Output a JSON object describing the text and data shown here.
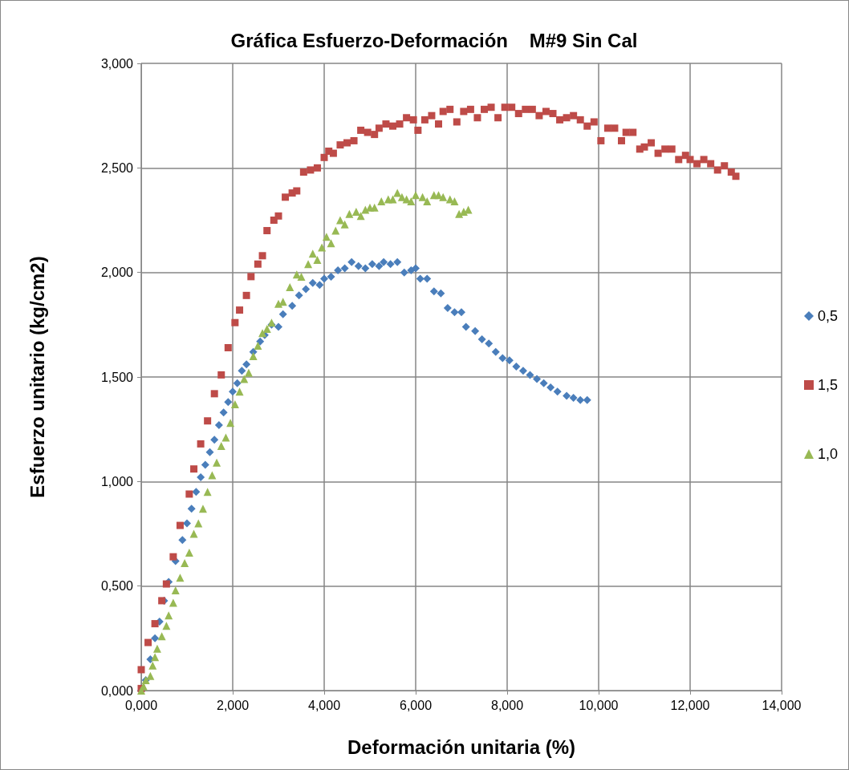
{
  "chart_data": {
    "type": "scatter",
    "title": "Gráfica Esfuerzo-Deformación    M#9 Sin Cal",
    "xlabel": "Deformación unitaria (%)",
    "ylabel": "Esfuerzo unitario (kg/cm2)",
    "xlim": [
      0,
      14
    ],
    "ylim": [
      0,
      3
    ],
    "xticks": [
      {
        "value": 0,
        "label": "0,000"
      },
      {
        "value": 2,
        "label": "2,000"
      },
      {
        "value": 4,
        "label": "4,000"
      },
      {
        "value": 6,
        "label": "6,000"
      },
      {
        "value": 8,
        "label": "8,000"
      },
      {
        "value": 10,
        "label": "10,000"
      },
      {
        "value": 12,
        "label": "12,000"
      },
      {
        "value": 14,
        "label": "14,000"
      }
    ],
    "yticks": [
      {
        "value": 0,
        "label": "0,000"
      },
      {
        "value": 0.5,
        "label": "0,500"
      },
      {
        "value": 1,
        "label": "1,000"
      },
      {
        "value": 1.5,
        "label": "1,500"
      },
      {
        "value": 2,
        "label": "2,000"
      },
      {
        "value": 2.5,
        "label": "2,500"
      },
      {
        "value": 3,
        "label": "3,000"
      }
    ],
    "grid": true,
    "legend": "right",
    "series": [
      {
        "name": "0,5",
        "color": "#4a7ebb",
        "marker": "diamond",
        "x": [
          0,
          0.1,
          0.2,
          0.3,
          0.4,
          0.5,
          0.6,
          0.75,
          0.9,
          1.0,
          1.1,
          1.2,
          1.3,
          1.4,
          1.5,
          1.6,
          1.7,
          1.8,
          1.9,
          2.0,
          2.1,
          2.2,
          2.3,
          2.45,
          2.6,
          2.7,
          2.85,
          3.0,
          3.1,
          3.3,
          3.45,
          3.6,
          3.75,
          3.9,
          4.0,
          4.15,
          4.3,
          4.45,
          4.6,
          4.75,
          4.9,
          5.05,
          5.2,
          5.3,
          5.45,
          5.6,
          5.75,
          5.9,
          6.0,
          6.1,
          6.25,
          6.4,
          6.55,
          6.7,
          6.85,
          7.0,
          7.1,
          7.3,
          7.45,
          7.6,
          7.75,
          7.9,
          8.05,
          8.2,
          8.35,
          8.5,
          8.65,
          8.8,
          8.95,
          9.1,
          9.3,
          9.45,
          9.6,
          9.75
        ],
        "values": [
          0,
          0.05,
          0.15,
          0.25,
          0.33,
          0.43,
          0.52,
          0.62,
          0.72,
          0.8,
          0.87,
          0.95,
          1.02,
          1.08,
          1.14,
          1.2,
          1.27,
          1.33,
          1.38,
          1.43,
          1.47,
          1.53,
          1.56,
          1.62,
          1.67,
          1.7,
          1.75,
          1.74,
          1.8,
          1.84,
          1.89,
          1.92,
          1.95,
          1.94,
          1.97,
          1.98,
          2.01,
          2.02,
          2.05,
          2.03,
          2.02,
          2.04,
          2.03,
          2.05,
          2.04,
          2.05,
          2.0,
          2.01,
          2.02,
          1.97,
          1.97,
          1.91,
          1.9,
          1.83,
          1.81,
          1.81,
          1.74,
          1.72,
          1.68,
          1.66,
          1.62,
          1.59,
          1.58,
          1.55,
          1.53,
          1.51,
          1.49,
          1.47,
          1.45,
          1.43,
          1.41,
          1.4,
          1.39,
          1.39
        ]
      },
      {
        "name": "1,5",
        "color": "#be4b48",
        "marker": "square",
        "x": [
          0,
          0,
          0.15,
          0.3,
          0.45,
          0.55,
          0.7,
          0.85,
          1.05,
          1.15,
          1.3,
          1.45,
          1.6,
          1.75,
          1.9,
          2.05,
          2.15,
          2.3,
          2.4,
          2.55,
          2.65,
          2.75,
          2.9,
          3.0,
          3.15,
          3.3,
          3.4,
          3.55,
          3.7,
          3.85,
          4.0,
          4.1,
          4.2,
          4.35,
          4.5,
          4.65,
          4.8,
          4.95,
          5.1,
          5.2,
          5.35,
          5.5,
          5.65,
          5.8,
          5.95,
          6.05,
          6.2,
          6.35,
          6.5,
          6.6,
          6.75,
          6.9,
          7.05,
          7.2,
          7.35,
          7.5,
          7.65,
          7.8,
          7.95,
          8.1,
          8.25,
          8.4,
          8.55,
          8.7,
          8.85,
          9.0,
          9.15,
          9.3,
          9.45,
          9.6,
          9.75,
          9.9,
          10.05,
          10.2,
          10.35,
          10.5,
          10.6,
          10.75,
          10.9,
          11.0,
          11.15,
          11.3,
          11.45,
          11.6,
          11.75,
          11.9,
          12.0,
          12.15,
          12.3,
          12.45,
          12.6,
          12.75,
          12.9,
          13.0
        ],
        "values": [
          0.01,
          0.1,
          0.23,
          0.32,
          0.43,
          0.51,
          0.64,
          0.79,
          0.94,
          1.06,
          1.18,
          1.29,
          1.42,
          1.51,
          1.64,
          1.76,
          1.82,
          1.89,
          1.98,
          2.04,
          2.08,
          2.2,
          2.25,
          2.27,
          2.36,
          2.38,
          2.39,
          2.48,
          2.49,
          2.5,
          2.55,
          2.58,
          2.57,
          2.61,
          2.62,
          2.63,
          2.68,
          2.67,
          2.66,
          2.69,
          2.71,
          2.7,
          2.71,
          2.74,
          2.73,
          2.68,
          2.73,
          2.75,
          2.71,
          2.77,
          2.78,
          2.72,
          2.77,
          2.78,
          2.74,
          2.78,
          2.79,
          2.74,
          2.79,
          2.79,
          2.76,
          2.78,
          2.78,
          2.75,
          2.77,
          2.76,
          2.73,
          2.74,
          2.75,
          2.73,
          2.7,
          2.72,
          2.63,
          2.69,
          2.69,
          2.63,
          2.67,
          2.67,
          2.59,
          2.6,
          2.62,
          2.57,
          2.59,
          2.59,
          2.54,
          2.56,
          2.54,
          2.52,
          2.54,
          2.52,
          2.49,
          2.51,
          2.48,
          2.46
        ]
      },
      {
        "name": "1,0",
        "color": "#98b954",
        "marker": "triangle",
        "x": [
          0,
          0.05,
          0.1,
          0.2,
          0.25,
          0.3,
          0.35,
          0.45,
          0.55,
          0.6,
          0.7,
          0.75,
          0.85,
          0.95,
          1.05,
          1.15,
          1.25,
          1.35,
          1.45,
          1.55,
          1.65,
          1.75,
          1.85,
          1.95,
          2.05,
          2.15,
          2.25,
          2.35,
          2.45,
          2.55,
          2.65,
          2.75,
          2.85,
          3.0,
          3.1,
          3.25,
          3.4,
          3.5,
          3.65,
          3.75,
          3.85,
          3.95,
          4.05,
          4.15,
          4.25,
          4.35,
          4.45,
          4.55,
          4.7,
          4.8,
          4.9,
          5.0,
          5.1,
          5.25,
          5.4,
          5.5,
          5.6,
          5.7,
          5.8,
          5.9,
          6.0,
          6.15,
          6.25,
          6.4,
          6.5,
          6.6,
          6.75,
          6.85,
          6.95,
          7.05,
          7.15
        ],
        "values": [
          0,
          0.02,
          0.05,
          0.07,
          0.12,
          0.16,
          0.2,
          0.26,
          0.31,
          0.36,
          0.42,
          0.48,
          0.54,
          0.61,
          0.66,
          0.75,
          0.8,
          0.87,
          0.95,
          1.03,
          1.09,
          1.17,
          1.21,
          1.28,
          1.37,
          1.43,
          1.49,
          1.52,
          1.6,
          1.65,
          1.71,
          1.73,
          1.76,
          1.85,
          1.86,
          1.93,
          1.99,
          1.98,
          2.04,
          2.09,
          2.06,
          2.12,
          2.17,
          2.14,
          2.2,
          2.25,
          2.23,
          2.28,
          2.29,
          2.27,
          2.3,
          2.31,
          2.31,
          2.34,
          2.35,
          2.35,
          2.38,
          2.36,
          2.35,
          2.34,
          2.37,
          2.36,
          2.34,
          2.37,
          2.37,
          2.36,
          2.35,
          2.34,
          2.28,
          2.29,
          2.3
        ]
      }
    ]
  }
}
